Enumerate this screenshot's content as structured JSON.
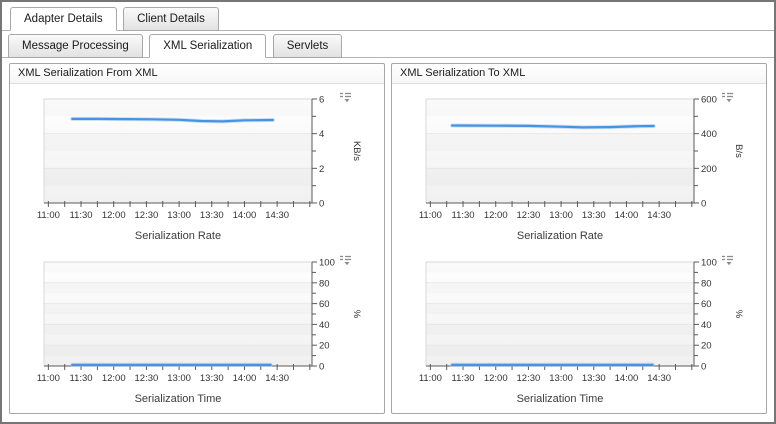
{
  "primary_tabs": [
    {
      "label": "Adapter Details",
      "active": true
    },
    {
      "label": "Client Details",
      "active": false
    }
  ],
  "secondary_tabs": [
    {
      "label": "Message Processing",
      "active": false
    },
    {
      "label": "XML Serialization",
      "active": true
    },
    {
      "label": "Servlets",
      "active": false
    }
  ],
  "panels": [
    {
      "title": "XML Serialization From XML"
    },
    {
      "title": "XML Serialization To XML"
    }
  ],
  "colors": {
    "accent_line": "#4593e2",
    "line_halo": "#a9cdf1",
    "axis": "#5a5a5a",
    "grid": "#e7e7e7",
    "tick_text": "#333333",
    "title_text": "#3c3c3c"
  },
  "icons": {
    "legend_menu": "legend-menu-icon"
  },
  "chart_data": [
    {
      "type": "line",
      "panel": "XML Serialization From XML",
      "title": "Serialization Rate",
      "ylabel": "KB/s",
      "ylim": [
        0,
        6
      ],
      "y_major_ticks": [
        0,
        2,
        4,
        6
      ],
      "y_minor_step": 1,
      "x_domain": [
        "10:56",
        "15:02"
      ],
      "x_major_labels": [
        "11:00",
        "11:30",
        "12:00",
        "12:30",
        "13:00",
        "13:30",
        "14:00",
        "14:30"
      ],
      "x_minor_step_min": 15,
      "grid": true,
      "legend_position": "top-right",
      "series": [
        {
          "name": "serialization-rate-from-xml",
          "points": [
            [
              "11:22",
              4.85
            ],
            [
              "11:45",
              4.85
            ],
            [
              "12:10",
              4.84
            ],
            [
              "12:35",
              4.83
            ],
            [
              "13:00",
              4.8
            ],
            [
              "13:20",
              4.73
            ],
            [
              "13:40",
              4.71
            ],
            [
              "14:00",
              4.77
            ],
            [
              "14:26",
              4.79
            ]
          ]
        }
      ]
    },
    {
      "type": "line",
      "panel": "XML Serialization From XML",
      "title": "Serialization Time",
      "ylabel": "%",
      "ylim": [
        0,
        100
      ],
      "y_major_ticks": [
        0,
        20,
        40,
        60,
        80,
        100
      ],
      "y_minor_step": 10,
      "x_domain": [
        "10:56",
        "15:02"
      ],
      "x_major_labels": [
        "11:00",
        "11:30",
        "12:00",
        "12:30",
        "13:00",
        "13:30",
        "14:00",
        "14:30"
      ],
      "x_minor_step_min": 15,
      "grid": true,
      "legend_position": "top-right",
      "series": [
        {
          "name": "serialization-time-from-xml",
          "points": [
            [
              "11:22",
              1.2
            ],
            [
              "12:00",
              1.2
            ],
            [
              "12:30",
              1.2
            ],
            [
              "13:00",
              1.2
            ],
            [
              "13:30",
              1.2
            ],
            [
              "14:00",
              1.2
            ],
            [
              "14:24",
              1.2
            ]
          ]
        }
      ]
    },
    {
      "type": "line",
      "panel": "XML Serialization To XML",
      "title": "Serialization Rate",
      "ylabel": "B/s",
      "ylim": [
        0,
        600
      ],
      "y_major_ticks": [
        0,
        200,
        400,
        600
      ],
      "y_minor_step": 100,
      "x_domain": [
        "10:56",
        "15:02"
      ],
      "x_major_labels": [
        "11:00",
        "11:30",
        "12:00",
        "12:30",
        "13:00",
        "13:30",
        "14:00",
        "14:30"
      ],
      "x_minor_step_min": 15,
      "grid": true,
      "legend_position": "top-right",
      "series": [
        {
          "name": "serialization-rate-to-xml",
          "points": [
            [
              "11:20",
              447
            ],
            [
              "12:00",
              446
            ],
            [
              "12:30",
              445
            ],
            [
              "13:00",
              440
            ],
            [
              "13:20",
              436
            ],
            [
              "13:45",
              438
            ],
            [
              "14:10",
              443
            ],
            [
              "14:25",
              444
            ]
          ]
        }
      ]
    },
    {
      "type": "line",
      "panel": "XML Serialization To XML",
      "title": "Serialization Time",
      "ylabel": "%",
      "ylim": [
        0,
        100
      ],
      "y_major_ticks": [
        0,
        20,
        40,
        60,
        80,
        100
      ],
      "y_minor_step": 10,
      "x_domain": [
        "10:56",
        "15:02"
      ],
      "x_major_labels": [
        "11:00",
        "11:30",
        "12:00",
        "12:30",
        "13:00",
        "13:30",
        "14:00",
        "14:30"
      ],
      "x_minor_step_min": 15,
      "grid": true,
      "legend_position": "top-right",
      "series": [
        {
          "name": "serialization-time-to-xml",
          "points": [
            [
              "11:20",
              1.2
            ],
            [
              "12:00",
              1.2
            ],
            [
              "12:30",
              1.2
            ],
            [
              "13:00",
              1.2
            ],
            [
              "13:30",
              1.2
            ],
            [
              "14:00",
              1.2
            ],
            [
              "14:24",
              1.2
            ]
          ]
        }
      ]
    }
  ]
}
